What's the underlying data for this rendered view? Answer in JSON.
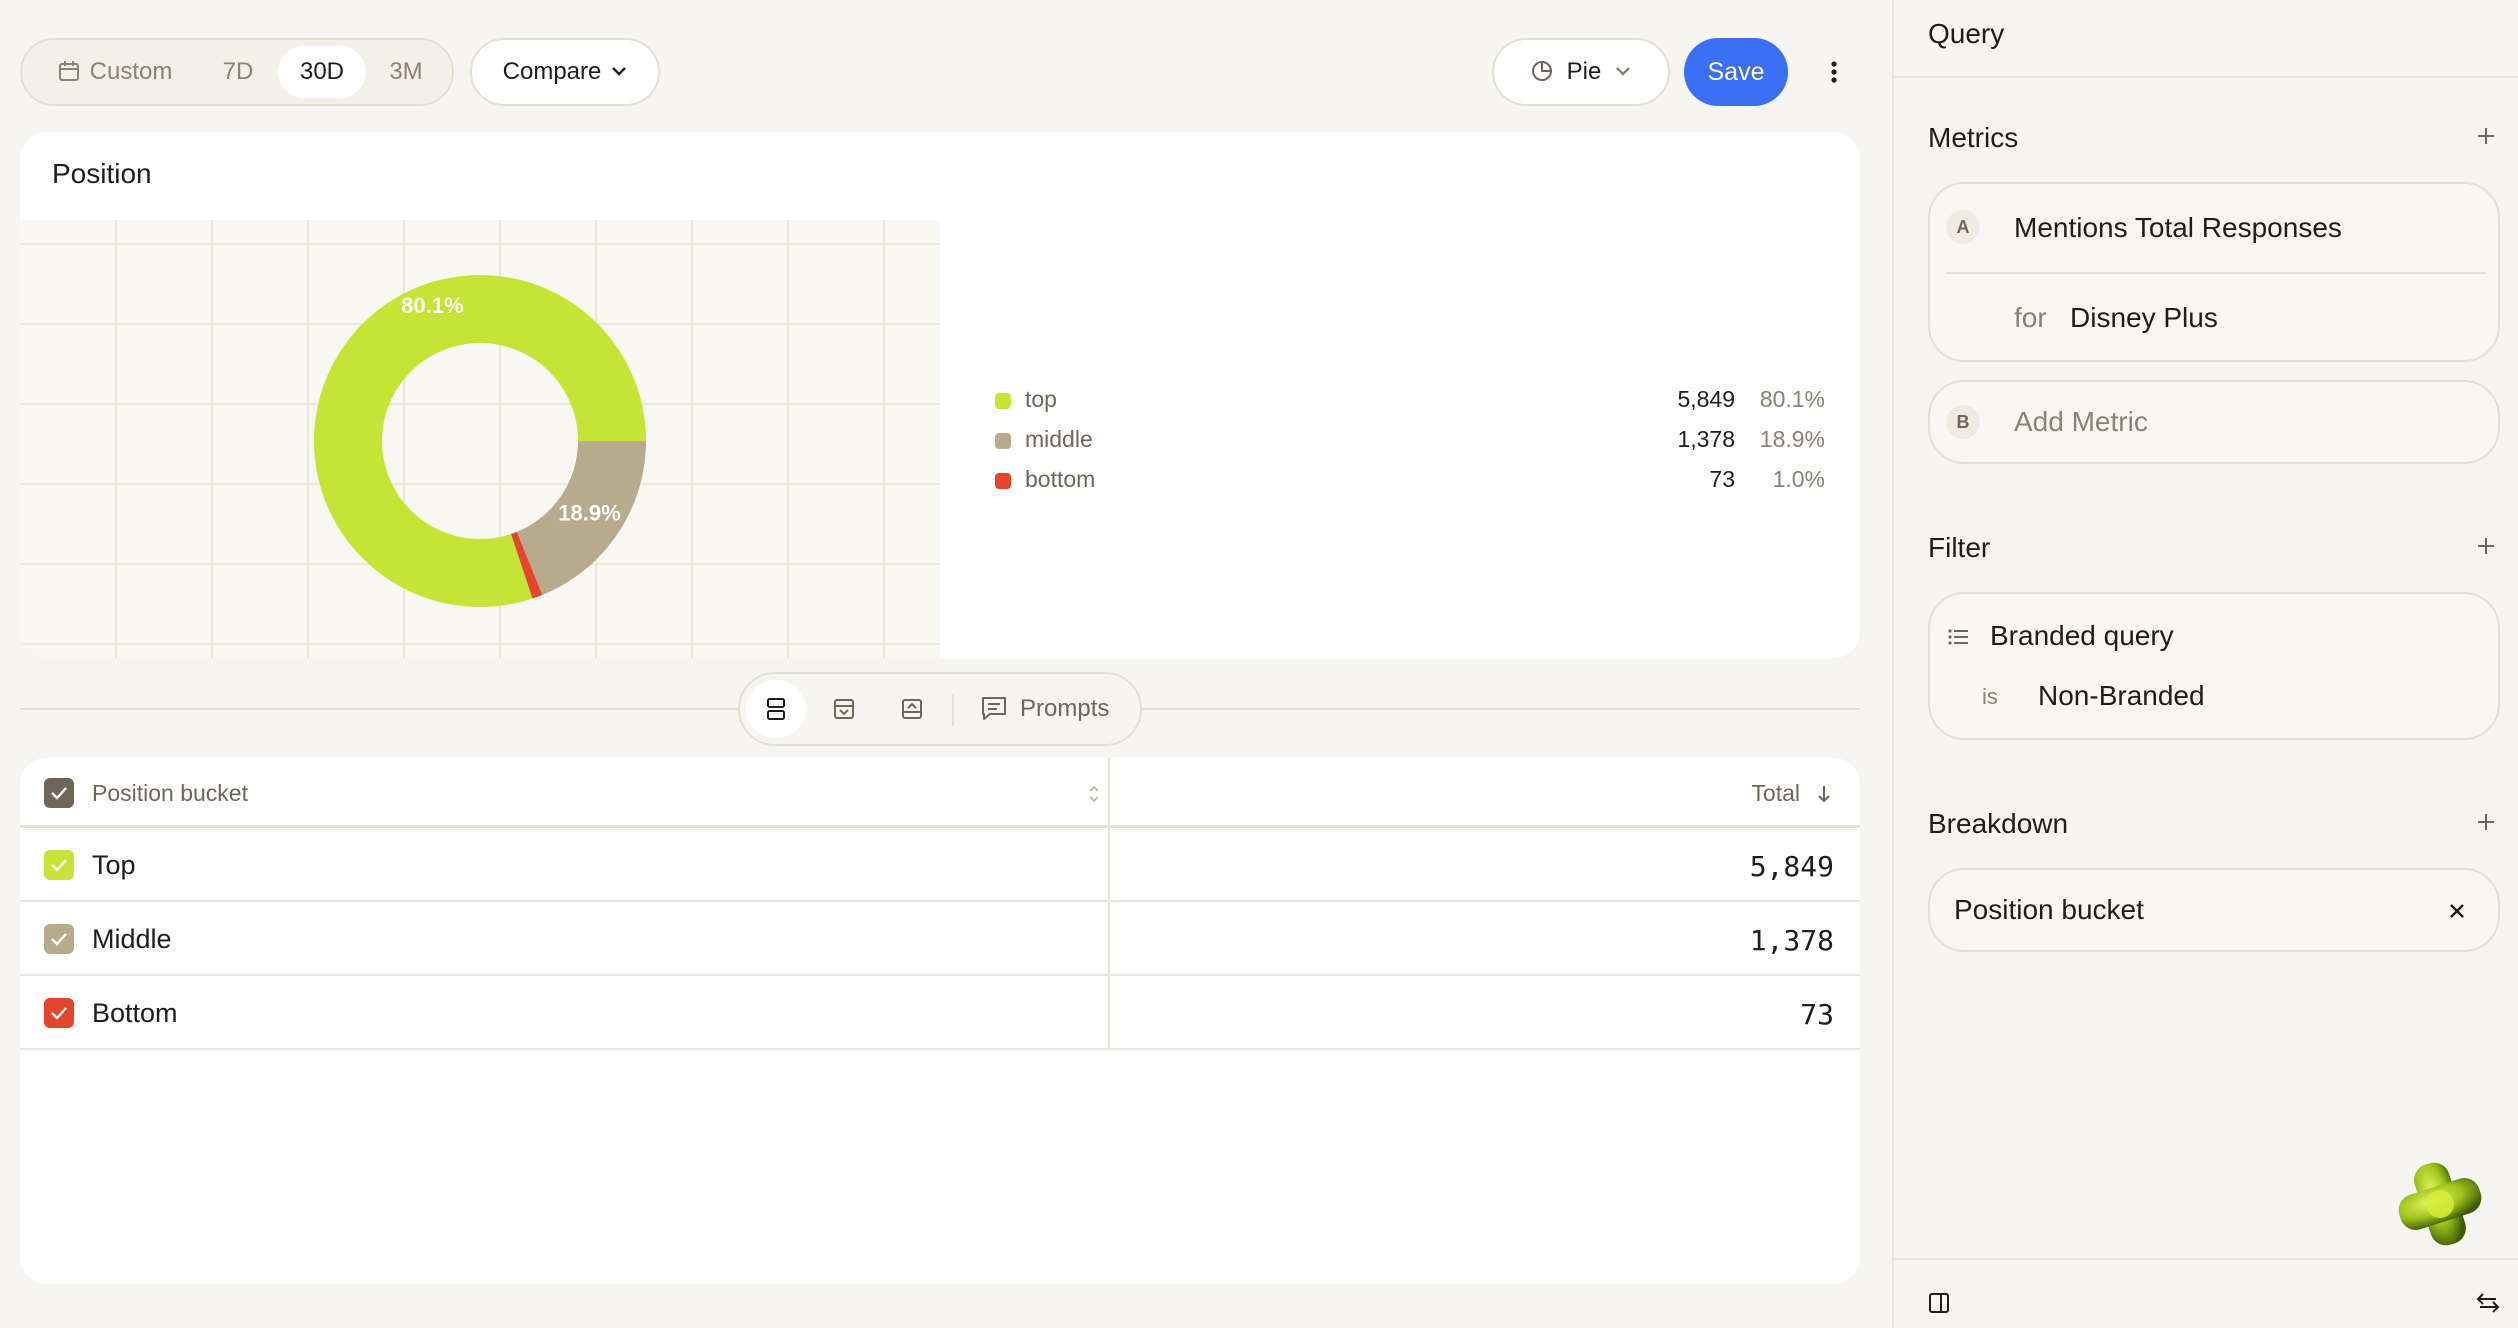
{
  "toolbar": {
    "ranges": [
      {
        "label": "Custom",
        "active": false
      },
      {
        "label": "7D",
        "active": false
      },
      {
        "label": "30D",
        "active": true
      },
      {
        "label": "3M",
        "active": false
      }
    ],
    "compare_label": "Compare",
    "chart_type_label": "Pie",
    "save_label": "Save"
  },
  "chart": {
    "title": "Position",
    "legend": [
      {
        "name": "top",
        "value": "5,849",
        "pct": "80.1%",
        "color": "#c5e435"
      },
      {
        "name": "middle",
        "value": "1,378",
        "pct": "18.9%",
        "color": "#b8ab8d"
      },
      {
        "name": "bottom",
        "value": "73",
        "pct": "1.0%",
        "color": "#e5452a"
      }
    ]
  },
  "chart_data": {
    "type": "pie",
    "title": "Position",
    "categories": [
      "top",
      "middle",
      "bottom"
    ],
    "values": [
      5849,
      1378,
      73
    ],
    "percentages": [
      80.1,
      18.9,
      1.0
    ],
    "data_labels": [
      "80.1%",
      "18.9%",
      ""
    ],
    "colors": [
      "#c5e435",
      "#b8ab8d",
      "#e5452a"
    ],
    "donut": true,
    "legend_position": "right",
    "grid": true
  },
  "view_toggle": {
    "prompts_label": "Prompts"
  },
  "table": {
    "col_bucket": "Position bucket",
    "col_total": "Total",
    "rows": [
      {
        "label": "Top",
        "total": "5,849",
        "color": "#c5e435"
      },
      {
        "label": "Middle",
        "total": "1,378",
        "color": "#b8ab8d"
      },
      {
        "label": "Bottom",
        "total": "73",
        "color": "#e5452a"
      }
    ]
  },
  "panel": {
    "title": "Query",
    "metrics": {
      "title": "Metrics",
      "metric_a": {
        "letter": "A",
        "name": "Mentions Total Responses",
        "for_label": "for",
        "for_value": "Disney Plus"
      },
      "metric_b": {
        "letter": "B",
        "name": "Add Metric"
      }
    },
    "filter": {
      "title": "Filter",
      "field": "Branded query",
      "op": "is",
      "value": "Non-Branded"
    },
    "breakdown": {
      "title": "Breakdown",
      "item": "Position bucket"
    }
  }
}
